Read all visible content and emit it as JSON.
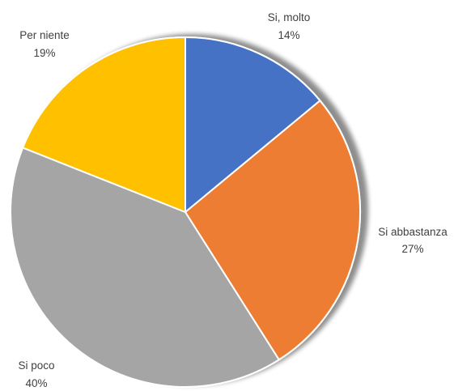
{
  "chart_data": {
    "type": "pie",
    "title": "",
    "categories": [
      "Si, molto",
      "Si abbastanza",
      "Si poco",
      "Per niente"
    ],
    "values": [
      14,
      27,
      40,
      19
    ],
    "value_labels": [
      "14%",
      "27%",
      "40%",
      "19%"
    ],
    "colors": [
      "#4472C4",
      "#ED7D31",
      "#A5A5A5",
      "#FFC000"
    ],
    "start_angle": "12 o'clock",
    "direction": "clockwise",
    "shadow": true,
    "legend": "none",
    "data_labels": "outside"
  }
}
